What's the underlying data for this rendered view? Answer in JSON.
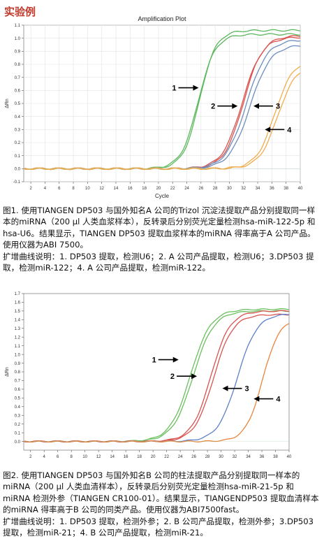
{
  "page": {
    "heading": "实验例"
  },
  "chart_data": [
    {
      "type": "line",
      "title": "Amplification Plot",
      "xlabel": "Cycle",
      "ylabel": "ΔRn",
      "xlim": [
        1,
        40
      ],
      "ylim": [
        -0.1,
        1.1
      ],
      "xticks": [
        2,
        4,
        6,
        8,
        10,
        12,
        14,
        16,
        18,
        20,
        22,
        24,
        26,
        28,
        30,
        32,
        34,
        36,
        38,
        40
      ],
      "yticks": [
        -0.1,
        0.0,
        0.1,
        0.2,
        0.3,
        0.4,
        0.5,
        0.6,
        0.7,
        0.8,
        0.9,
        1.0,
        1.1
      ],
      "grid": true,
      "series": [
        {
          "color": "#5cb85c",
          "params": [
            [
              1.06,
              25.8,
              1.15
            ],
            [
              1.03,
              25.6,
              1.2
            ]
          ]
        },
        {
          "color": "#d9534f",
          "params": [
            [
              1.02,
              32.0,
              1.35
            ],
            [
              1.01,
              31.8,
              1.4
            ]
          ]
        },
        {
          "color": "#6c8ebf",
          "params": [
            [
              0.95,
              32.9,
              1.45
            ],
            [
              0.99,
              32.4,
              1.45
            ]
          ]
        },
        {
          "color": "#f0ad4e",
          "params": [
            [
              0.8,
              36.8,
              1.3
            ],
            [
              0.84,
              36.4,
              1.3
            ]
          ]
        }
      ],
      "annotations": [
        {
          "label": "1",
          "x": 23.5,
          "y": 0.62,
          "arrow": "right"
        },
        {
          "label": "2",
          "x": 29.0,
          "y": 0.48,
          "arrow": "right"
        },
        {
          "label": "3",
          "x": 33.4,
          "y": 0.48,
          "arrow": "left"
        },
        {
          "label": "4",
          "x": 35.0,
          "y": 0.3,
          "arrow": "left"
        }
      ]
    },
    {
      "type": "line",
      "title": "",
      "xlabel": "",
      "ylabel": "ΔRn",
      "xlim": [
        1,
        40
      ],
      "ylim": [
        -0.1,
        1.7
      ],
      "xticks": [
        2,
        4,
        6,
        8,
        10,
        12,
        14,
        16,
        18,
        20,
        22,
        24,
        26,
        28,
        30,
        32,
        34,
        36,
        38,
        40
      ],
      "yticks": [
        0.0,
        0.1,
        0.2,
        0.3,
        0.4,
        0.5,
        0.6,
        0.7,
        0.8,
        0.9,
        1.0,
        1.1,
        1.2,
        1.3,
        1.4,
        1.5,
        1.6,
        1.7
      ],
      "grid": false,
      "series": [
        {
          "color": "#6abf5e",
          "params": [
            [
              1.52,
              25.5,
              1.5
            ],
            [
              1.5,
              25.9,
              1.5
            ]
          ]
        },
        {
          "color": "#d9534f",
          "params": [
            [
              1.5,
              28.5,
              1.4
            ],
            [
              1.46,
              28.9,
              1.4
            ]
          ]
        },
        {
          "color": "#5b7fc9",
          "params": [
            [
              1.47,
              32.4,
              1.45
            ]
          ]
        },
        {
          "color": "#e8853d",
          "params": [
            [
              1.42,
              36.1,
              1.25
            ]
          ]
        }
      ],
      "annotations": [
        {
          "label": "1",
          "x": 21.5,
          "y": 0.94,
          "arrow": "right"
        },
        {
          "label": "2",
          "x": 24.2,
          "y": 0.75,
          "arrow": "right"
        },
        {
          "label": "3",
          "x": 30.2,
          "y": 0.61,
          "arrow": "left"
        },
        {
          "label": "4",
          "x": 34.8,
          "y": 0.49,
          "arrow": "left"
        }
      ]
    }
  ],
  "captions": {
    "fig1": [
      "图1. 使用TIANGEN DP503 与国外知名A 公司的Trizol 沉淀法提取产品分别提取同一样本的miRNA（200 μl 人类血浆样本），反转录后分别荧光定量检测hsa-miR-122-5p 和hsa-U6。结果显示，TIANGEN DP503 提取血浆样本的miRNA 得率高于A 公司产品。使用仪器为ABI 7500。",
      "扩增曲线说明：1. DP503 提取，检测U6；2. A 公司产品提取，检测U6；3.DP503 提取，检测miR-122；4. A 公司产品提取，检测miR-122。"
    ],
    "fig2": [
      "图2. 使用TIANGEN DP503 与国外知名B 公司的柱法提取产品分别提取同一样本的miRNA（200 μl 人类血清样本），反转录后分别荧光定量检测hsa-miR-21-5p 和miRNA 检测外参（TIANGEN CR100-01）。结果显示，TIANGENDP503 提取血清样本的miRNA 得率高于B 公司的同类产品。使用仪器为ABI7500fast。",
      "扩增曲线说明：1. DP503 提取，检测外参；2. B 公司产品提取，检测外参；3.DP503 提取，检测miR-21；4. B 公司产品提取，检测miR-21。"
    ]
  }
}
